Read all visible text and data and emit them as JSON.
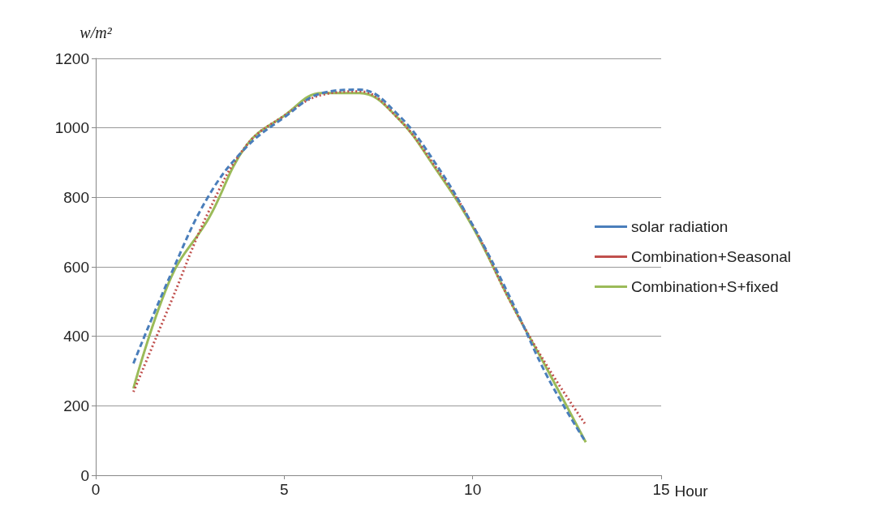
{
  "chart_data": {
    "type": "line",
    "xlabel": "Hour",
    "ylabel": "w/m²",
    "x": [
      1,
      2,
      3,
      4,
      5,
      6,
      7,
      8,
      9,
      10,
      11,
      12,
      13
    ],
    "xlim": [
      0,
      15
    ],
    "xticks": [
      0,
      5,
      10,
      15
    ],
    "ylim": [
      0,
      1200
    ],
    "yticks": [
      0,
      200,
      400,
      600,
      800,
      1000,
      1200
    ],
    "grid": "y",
    "legend": "right",
    "marker": "none",
    "series": [
      {
        "name": "solar radiation",
        "color": "#4a7ebb",
        "line_style": "dashed",
        "values": [
          322,
          580,
          805,
          945,
          1030,
          1100,
          1110,
          1040,
          900,
          720,
          510,
          280,
          95
        ]
      },
      {
        "name": "Combination+Seasonal",
        "color": "#c0504d",
        "line_style": "dotted",
        "values": [
          240,
          500,
          760,
          950,
          1035,
          1095,
          1105,
          1030,
          890,
          720,
          500,
          310,
          145
        ]
      },
      {
        "name": "Combination+S+fixed",
        "color": "#9bbb59",
        "line_style": "solid",
        "values": [
          250,
          570,
          740,
          950,
          1035,
          1100,
          1100,
          1030,
          885,
          715,
          500,
          300,
          95
        ]
      }
    ]
  }
}
